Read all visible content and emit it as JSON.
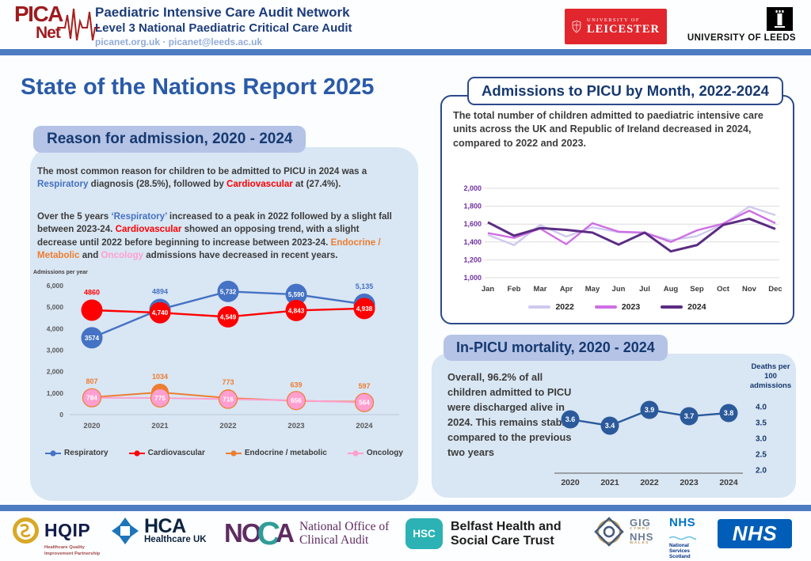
{
  "header": {
    "logo": {
      "line1": "PICA",
      "line2": "Net"
    },
    "title": "Paediatric Intensive Care Audit Network",
    "subtitle": "Level 3 National Paediatric Critical Care Audit",
    "contact": "picanet.org.uk · picanet@leeds.ac.uk",
    "partners": {
      "leicester": {
        "line1": "UNIVERSITY OF",
        "line2": "LEICESTER"
      },
      "leeds": "UNIVERSITY OF LEEDS"
    }
  },
  "page_title": "State of the Nations Report 2025",
  "colors": {
    "bar_blue": "#4d7cc3",
    "panel_blue": "#d9e6f3",
    "chip_blue": "#b4c3e6",
    "heading_navy": "#16396f",
    "title_blue": "#2a5aa8",
    "respiratory": "#4472c4",
    "cardiovascular": "#ff0000",
    "endocrine": "#ed7d31",
    "oncology": "#ff9fd0",
    "y2022": "#cfc9ee",
    "y2023": "#cf6ee4",
    "y2024": "#5b2c83",
    "mortality_navy": "#2b5a9b"
  },
  "reason_section": {
    "heading": "Reason for admission, 2020 - 2024",
    "para1": [
      {
        "text": "The most common reason for children to be admitted to PICU in 2024 was a "
      },
      {
        "text": "Respiratory",
        "color": "#4472c4"
      },
      {
        "text": " diagnosis (28.5%), followed by "
      },
      {
        "text": "Cardiovascular",
        "color": "#ff0000"
      },
      {
        "text": " at (27.4%)."
      }
    ],
    "para2": [
      {
        "text": "Over the 5 years "
      },
      {
        "text": "‘Respiratory’",
        "color": "#4472c4"
      },
      {
        "text": " increased to a peak in 2022 followed by a slight fall between 2023-24. "
      },
      {
        "text": "Cardiovascular",
        "color": "#ff0000"
      },
      {
        "text": " showed an opposing trend, with a slight decrease until 2022 before beginning to increase between 2023-24. "
      },
      {
        "text": "Endocrine / Metabolic",
        "color": "#ed7d31"
      },
      {
        "text": " and "
      },
      {
        "text": "Oncology",
        "color": "#ff9fd0"
      },
      {
        "text": " admissions have decreased in recent years."
      }
    ],
    "chart_axis_title": "Admissions per year"
  },
  "monthly_section": {
    "heading": "Admissions to PICU by Month, 2022-2024",
    "body": "The total number of children admitted to paediatric intensive care units across the UK and Republic of Ireland decreased in 2024, compared to 2022 and 2023."
  },
  "mortality_section": {
    "heading": "In-PICU mortality, 2020 - 2024",
    "body": "Overall, 96.2% of all children admitted to PICU were discharged alive in 2024. This remains stable compared to the previous two years"
  },
  "footer": {
    "hqip": {
      "name": "HQIP",
      "sub1": "Healthcare Quality",
      "sub2": "Improvement Partnership"
    },
    "hca": {
      "name": "HCA",
      "sub": "Healthcare UK"
    },
    "noca": {
      "n": "N",
      "o": "O",
      "c": "C",
      "a": "A",
      "line1": "National Office of",
      "line2": "Clinical Audit"
    },
    "hsc": {
      "abbr": "HSC",
      "line1": "Belfast Health and",
      "line2": "Social Care Trust"
    },
    "wales": {
      "gig": "GIG",
      "cymru": "CYMRU",
      "nhs": "NHS",
      "wales": "WALES"
    },
    "scotland": {
      "nhs": "NHS",
      "line1": "National",
      "line2": "Services",
      "line3": "Scotland"
    },
    "nhs": "NHS"
  },
  "chart_data": [
    {
      "id": "reasons",
      "type": "line",
      "title": "Reason for admission, 2020 - 2024",
      "ylabel": "Admissions per year",
      "categories": [
        "2020",
        "2021",
        "2022",
        "2023",
        "2024"
      ],
      "yticks": [
        0,
        1000,
        2000,
        3000,
        4000,
        5000,
        6000
      ],
      "ytick_labels": [
        "0",
        "1,000",
        "2,000",
        "3,000",
        "4,000",
        "5,000",
        "6,000"
      ],
      "ylim": [
        0,
        6000
      ],
      "grid": false,
      "legend_position": "bottom",
      "series": [
        {
          "name": "Respiratory",
          "color": "#4472c4",
          "values": [
            3574,
            4894,
            5732,
            5590,
            5135
          ],
          "labels": [
            "3574",
            "4894",
            "5,732",
            "5,590",
            "5,135"
          ],
          "label_pos": [
            "inside",
            "above",
            "inside",
            "inside",
            "above"
          ]
        },
        {
          "name": "Cardiovascular",
          "color": "#ff0000",
          "values": [
            4860,
            4740,
            4549,
            4843,
            4938
          ],
          "labels": [
            "4860",
            "4,740",
            "4,549",
            "4,843",
            "4,938"
          ],
          "label_pos": [
            "above",
            "inside",
            "inside",
            "inside",
            "inside"
          ]
        },
        {
          "name": "Endocrine / metabolic",
          "color": "#ed7d31",
          "values": [
            807,
            1034,
            773,
            639,
            597
          ],
          "labels": [
            "807",
            "1034",
            "773",
            "639",
            "597"
          ],
          "label_pos": [
            "above",
            "above",
            "above",
            "above",
            "above"
          ]
        },
        {
          "name": "Oncology",
          "color": "#ff9fd0",
          "values": [
            784,
            775,
            716,
            656,
            564
          ],
          "labels": [
            "784",
            "775",
            "716",
            "656",
            "564"
          ],
          "label_pos": [
            "inside",
            "inside",
            "inside",
            "inside",
            "inside"
          ]
        }
      ]
    },
    {
      "id": "monthly",
      "type": "line",
      "title": "Admissions to PICU by Month, 2022-2024",
      "categories": [
        "Jan",
        "Feb",
        "Mar",
        "Apr",
        "May",
        "Jun",
        "Jul",
        "Aug",
        "Sep",
        "Oct",
        "Nov",
        "Dec"
      ],
      "yticks": [
        1000,
        1200,
        1400,
        1600,
        1800,
        2000
      ],
      "ytick_labels": [
        "1,000",
        "1,200",
        "1,400",
        "1,600",
        "1,800",
        "2,000"
      ],
      "ylim": [
        1000,
        2000
      ],
      "grid": true,
      "legend_position": "bottom",
      "series": [
        {
          "name": "2022",
          "color": "#cfc9ee",
          "values": [
            1480,
            1365,
            1590,
            1460,
            1565,
            1510,
            1500,
            1420,
            1465,
            1600,
            1795,
            1700
          ]
        },
        {
          "name": "2023",
          "color": "#cf6ee4",
          "values": [
            1500,
            1445,
            1550,
            1375,
            1610,
            1515,
            1505,
            1400,
            1530,
            1605,
            1750,
            1610
          ]
        },
        {
          "name": "2024",
          "color": "#5b2c83",
          "values": [
            1620,
            1470,
            1555,
            1535,
            1505,
            1370,
            1505,
            1295,
            1365,
            1590,
            1660,
            1545
          ]
        }
      ]
    },
    {
      "id": "mortality",
      "type": "line",
      "title": "In-PICU mortality, 2020 - 2024",
      "categories": [
        "2020",
        "2021",
        "2022",
        "2023",
        "2024"
      ],
      "values": [
        3.6,
        3.4,
        3.9,
        3.7,
        3.8
      ],
      "labels": [
        "3.6",
        "3.4",
        "3.9",
        "3.7",
        "3.8"
      ],
      "color": "#2b5a9b",
      "yticks": [
        4.0,
        3.5,
        3.0,
        2.5,
        2.0
      ],
      "ytick_labels": [
        "4.0",
        "3.5",
        "3.0",
        "2.5",
        "2.0"
      ],
      "ylim": [
        2.0,
        4.0
      ],
      "axis_title_lines": [
        "Deaths per",
        "100",
        "admissions"
      ]
    }
  ]
}
